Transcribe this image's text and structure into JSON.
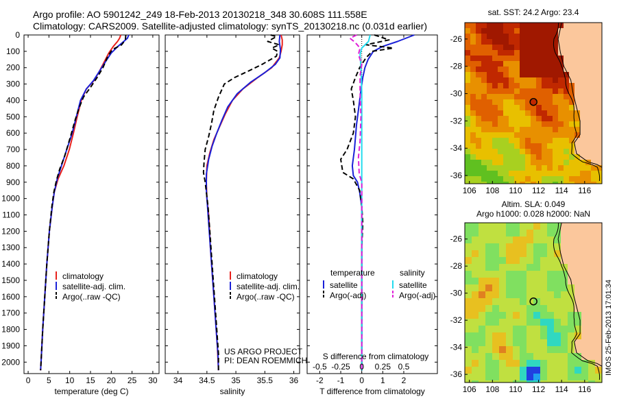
{
  "header": {
    "line1": "Argo profile: AO 5901242_249 18-Feb-2013 20130218_348 30.608S 111.558E",
    "line2": "Climatology: CARS2009. Satellite-adjusted climatology: synTS_20130218.nc (0.031d earlier)"
  },
  "credits": {
    "line1": "US ARGO PROJECT",
    "line2": "PI: DEAN ROEMMICH"
  },
  "stamp": "IMOS 25-Feb-2013 17:01:34",
  "colors": {
    "climatology": "#e8201b",
    "satellite": "#1a20d8",
    "argo": "#000000",
    "salinity_satellite": "#22dcee",
    "salinity_argo": "#e020d8"
  },
  "chart_data": [
    {
      "id": "temperature",
      "type": "line",
      "xlabel": "temperature (deg C)",
      "xlim": [
        -1,
        31.5
      ],
      "ylim": [
        2070,
        0
      ],
      "xticks": [
        0,
        5,
        10,
        15,
        20,
        25,
        30
      ],
      "yticks": [
        0,
        100,
        200,
        300,
        400,
        500,
        600,
        700,
        800,
        900,
        1000,
        1100,
        1200,
        1300,
        1400,
        1500,
        1600,
        1700,
        1800,
        1900,
        2000
      ],
      "legend": {
        "position": "lower-right",
        "entries": [
          "climatology",
          "satellite-adj. clim.",
          "Argo(..raw -QC)"
        ]
      },
      "series": [
        {
          "name": "climatology",
          "style": "solid",
          "color": "#e8201b",
          "points": [
            [
              22.3,
              0
            ],
            [
              22.0,
              20
            ],
            [
              21.5,
              40
            ],
            [
              20.5,
              70
            ],
            [
              19.4,
              110
            ],
            [
              18.4,
              160
            ],
            [
              17.2,
              220
            ],
            [
              15.8,
              280
            ],
            [
              14.0,
              330
            ],
            [
              12.8,
              400
            ],
            [
              11.8,
              500
            ],
            [
              10.9,
              600
            ],
            [
              9.9,
              700
            ],
            [
              8.6,
              800
            ],
            [
              7.2,
              880
            ],
            [
              6.3,
              960
            ],
            [
              5.8,
              1050
            ],
            [
              5.1,
              1200
            ],
            [
              4.5,
              1400
            ],
            [
              4.0,
              1600
            ],
            [
              3.5,
              1800
            ],
            [
              3.1,
              2000
            ],
            [
              3.0,
              2050
            ]
          ]
        },
        {
          "name": "satellite-adj. clim.",
          "style": "solid",
          "color": "#1a20d8",
          "points": [
            [
              24.2,
              0
            ],
            [
              23.9,
              20
            ],
            [
              23.0,
              40
            ],
            [
              21.6,
              70
            ],
            [
              20.0,
              110
            ],
            [
              18.7,
              160
            ],
            [
              17.2,
              220
            ],
            [
              15.7,
              280
            ],
            [
              14.0,
              330
            ],
            [
              12.6,
              400
            ],
            [
              11.6,
              500
            ],
            [
              10.6,
              600
            ],
            [
              9.3,
              700
            ],
            [
              8.0,
              800
            ],
            [
              7.0,
              880
            ],
            [
              6.3,
              960
            ],
            [
              5.8,
              1050
            ],
            [
              5.1,
              1200
            ],
            [
              4.5,
              1400
            ],
            [
              4.0,
              1600
            ],
            [
              3.5,
              1800
            ],
            [
              3.1,
              2000
            ],
            [
              3.0,
              2050
            ]
          ]
        },
        {
          "name": "Argo(..raw -QC)",
          "style": "dashed",
          "color": "#000000",
          "points": [
            [
              23.5,
              0
            ],
            [
              23.4,
              30
            ],
            [
              22.5,
              60
            ],
            [
              20.2,
              90
            ],
            [
              19.0,
              140
            ],
            [
              18.0,
              200
            ],
            [
              16.6,
              260
            ],
            [
              15.0,
              320
            ],
            [
              13.3,
              380
            ],
            [
              12.2,
              450
            ],
            [
              11.3,
              520
            ],
            [
              10.2,
              620
            ],
            [
              8.8,
              740
            ],
            [
              7.6,
              820
            ],
            [
              6.8,
              890
            ],
            [
              6.2,
              960
            ],
            [
              5.7,
              1050
            ],
            [
              5.1,
              1200
            ],
            [
              4.5,
              1400
            ],
            [
              4.0,
              1600
            ],
            [
              3.5,
              1800
            ],
            [
              3.1,
              2000
            ],
            [
              3.0,
              2050
            ]
          ]
        }
      ]
    },
    {
      "id": "salinity",
      "type": "line",
      "xlabel": "salinity",
      "xlim": [
        33.78,
        36.1
      ],
      "ylim": [
        2070,
        0
      ],
      "xticks": [
        34,
        34.5,
        35,
        35.5,
        36
      ],
      "legend": {
        "position": "lower-right",
        "entries": [
          "climatology",
          "satellite-adj. clim.",
          "Argo(..raw -QC)"
        ]
      },
      "series": [
        {
          "name": "climatology",
          "style": "solid",
          "color": "#e8201b",
          "points": [
            [
              35.78,
              0
            ],
            [
              35.8,
              30
            ],
            [
              35.8,
              60
            ],
            [
              35.78,
              100
            ],
            [
              35.75,
              140
            ],
            [
              35.62,
              200
            ],
            [
              35.38,
              260
            ],
            [
              35.12,
              330
            ],
            [
              34.94,
              400
            ],
            [
              34.82,
              480
            ],
            [
              34.72,
              560
            ],
            [
              34.62,
              640
            ],
            [
              34.55,
              720
            ],
            [
              34.5,
              800
            ],
            [
              34.49,
              900
            ],
            [
              34.5,
              1000
            ],
            [
              34.53,
              1100
            ],
            [
              34.56,
              1300
            ],
            [
              34.6,
              1500
            ],
            [
              34.64,
              1700
            ],
            [
              34.68,
              1900
            ],
            [
              34.7,
              2050
            ]
          ]
        },
        {
          "name": "satellite-adj. clim.",
          "style": "solid",
          "color": "#1a20d8",
          "points": [
            [
              35.76,
              0
            ],
            [
              35.75,
              40
            ],
            [
              35.77,
              90
            ],
            [
              35.76,
              140
            ],
            [
              35.68,
              180
            ],
            [
              35.5,
              230
            ],
            [
              35.25,
              290
            ],
            [
              35.02,
              360
            ],
            [
              34.86,
              440
            ],
            [
              34.76,
              520
            ],
            [
              34.67,
              600
            ],
            [
              34.59,
              680
            ],
            [
              34.53,
              760
            ],
            [
              34.49,
              850
            ],
            [
              34.49,
              950
            ],
            [
              34.51,
              1050
            ],
            [
              34.54,
              1200
            ],
            [
              34.58,
              1400
            ],
            [
              34.62,
              1600
            ],
            [
              34.66,
              1800
            ],
            [
              34.69,
              1950
            ],
            [
              34.7,
              2050
            ]
          ]
        },
        {
          "name": "Argo(..raw -QC)",
          "style": "dashed",
          "color": "#000000",
          "points": [
            [
              35.6,
              0
            ],
            [
              35.7,
              10
            ],
            [
              35.55,
              40
            ],
            [
              35.75,
              60
            ],
            [
              35.62,
              80
            ],
            [
              35.72,
              100
            ],
            [
              35.7,
              130
            ],
            [
              35.45,
              180
            ],
            [
              35.22,
              220
            ],
            [
              34.98,
              260
            ],
            [
              34.8,
              300
            ],
            [
              34.7,
              380
            ],
            [
              34.62,
              460
            ],
            [
              34.58,
              540
            ],
            [
              34.53,
              620
            ],
            [
              34.47,
              700
            ],
            [
              34.45,
              780
            ],
            [
              34.44,
              840
            ],
            [
              34.47,
              900
            ],
            [
              34.49,
              960
            ],
            [
              34.52,
              1050
            ],
            [
              34.55,
              1200
            ],
            [
              34.59,
              1400
            ],
            [
              34.63,
              1600
            ],
            [
              34.67,
              1800
            ],
            [
              34.7,
              1950
            ],
            [
              34.7,
              2050
            ]
          ]
        }
      ]
    },
    {
      "id": "differences",
      "type": "line",
      "xlabel": "T difference from climatology",
      "x2label": "S difference from climatology",
      "xlim": [
        -2.6,
        3.6
      ],
      "ylim": [
        2070,
        0
      ],
      "xticks": [
        -2,
        -1,
        0,
        1,
        2
      ],
      "x2ticks": [
        -0.5,
        -0.25,
        0,
        0.25,
        0.5
      ],
      "x2scale": 4,
      "zero_line": true,
      "legend": {
        "position": "lower-center",
        "temperature_title": "temperature",
        "salinity_title": "salinity",
        "entries": [
          "satellite",
          "Argo(-adj)",
          "satellite",
          "Argo(-adj)"
        ]
      },
      "series": [
        {
          "name": "satellite",
          "group": "temperature",
          "style": "solid",
          "color": "#1a20d8",
          "points": [
            [
              2.5,
              0
            ],
            [
              1.7,
              40
            ],
            [
              1.0,
              70
            ],
            [
              0.55,
              100
            ],
            [
              0.3,
              150
            ],
            [
              0.15,
              200
            ],
            [
              0.05,
              260
            ],
            [
              -0.05,
              350
            ],
            [
              -0.15,
              450
            ],
            [
              -0.25,
              550
            ],
            [
              -0.35,
              700
            ],
            [
              -0.45,
              800
            ],
            [
              -0.4,
              860
            ],
            [
              -0.2,
              900
            ],
            [
              -0.1,
              960
            ],
            [
              0,
              1050
            ],
            [
              0,
              1200
            ],
            [
              0,
              2050
            ]
          ]
        },
        {
          "name": "Argo(-adj)",
          "group": "temperature",
          "style": "dashed",
          "color": "#000000",
          "points": [
            [
              0.6,
              0
            ],
            [
              1.3,
              30
            ],
            [
              0.2,
              60
            ],
            [
              1.5,
              80
            ],
            [
              0.5,
              100
            ],
            [
              0.2,
              140
            ],
            [
              -0.1,
              200
            ],
            [
              -0.3,
              260
            ],
            [
              -0.5,
              330
            ],
            [
              -0.4,
              400
            ],
            [
              -0.3,
              500
            ],
            [
              -0.4,
              600
            ],
            [
              -0.7,
              700
            ],
            [
              -1.0,
              760
            ],
            [
              -0.9,
              840
            ],
            [
              -0.4,
              880
            ],
            [
              -0.1,
              950
            ],
            [
              0,
              1050
            ],
            [
              0.05,
              1150
            ],
            [
              0,
              1300
            ],
            [
              0,
              2050
            ]
          ]
        },
        {
          "name": "satellite",
          "group": "salinity",
          "style": "solid",
          "color": "#22dcee",
          "points": [
            [
              0.1,
              0
            ],
            [
              0.08,
              40
            ],
            [
              0.0,
              80
            ],
            [
              -0.02,
              120
            ],
            [
              -0.01,
              200
            ],
            [
              0.0,
              350
            ],
            [
              0.0,
              2050
            ]
          ]
        },
        {
          "name": "Argo(-adj)",
          "group": "salinity",
          "style": "dashed",
          "color": "#e020d8",
          "points": [
            [
              -0.06,
              0
            ],
            [
              -0.14,
              20
            ],
            [
              -0.08,
              45
            ],
            [
              -0.02,
              80
            ],
            [
              -0.04,
              120
            ],
            [
              0.0,
              180
            ],
            [
              -0.02,
              250
            ],
            [
              -0.02,
              350
            ],
            [
              -0.01,
              500
            ],
            [
              -0.02,
              650
            ],
            [
              -0.04,
              750
            ],
            [
              -0.03,
              850
            ],
            [
              0.0,
              900
            ],
            [
              0.0,
              2050
            ]
          ]
        }
      ]
    },
    {
      "id": "sst_map",
      "type": "heatmap",
      "title": "sat. SST: 24.2  Argo: 23.4",
      "xlim": [
        105.6,
        117.5
      ],
      "ylim": [
        -36.6,
        -24.8
      ],
      "xticks": [
        106,
        108,
        110,
        112,
        114,
        116
      ],
      "yticks": [
        -26,
        -28,
        -30,
        -32,
        -34,
        -36
      ],
      "marker": {
        "lon": 111.56,
        "lat": -30.61
      },
      "palette": [
        "#20b8c8",
        "#30c060",
        "#60c020",
        "#a8d020",
        "#e8c000",
        "#e89000",
        "#e06000",
        "#c02800",
        "#a01800"
      ]
    },
    {
      "id": "sla_map",
      "type": "heatmap",
      "title": "Altim. SLA: 0.049",
      "subtitle": "Argo h1000: 0.028 h2000: NaN",
      "xlim": [
        105.6,
        117.5
      ],
      "ylim": [
        -36.6,
        -24.8
      ],
      "xticks": [
        106,
        108,
        110,
        112,
        114,
        116
      ],
      "yticks": [
        -26,
        -28,
        -30,
        -32,
        -34,
        -36
      ],
      "marker": {
        "lon": 111.56,
        "lat": -30.61
      },
      "palette": [
        "#2040e0",
        "#20a0f0",
        "#30d8c0",
        "#80e060",
        "#c0e040",
        "#e8c020",
        "#e08020",
        "#c04810"
      ]
    }
  ]
}
